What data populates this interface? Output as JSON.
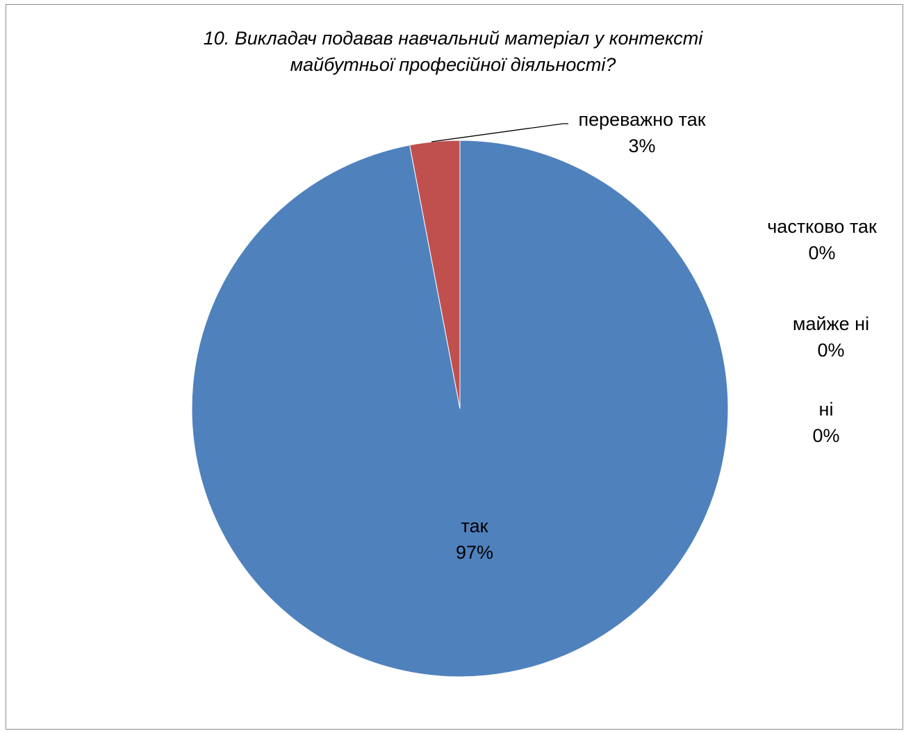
{
  "chart_data": {
    "type": "pie",
    "title_lines": [
      "10. Викладач подавав навчальний матеріал  у контексті",
      "майбутньої професійної діяльності?"
    ],
    "slices": [
      {
        "label": "так",
        "value": 97,
        "display": "97%",
        "color": "#4F81BD"
      },
      {
        "label": "переважно так",
        "value": 3,
        "display": "3%",
        "color": "#C0504D"
      },
      {
        "label": "частково так",
        "value": 0,
        "display": "0%",
        "color": "#9BBB59"
      },
      {
        "label": "майже ні",
        "value": 0,
        "display": "0%",
        "color": "#8064A2"
      },
      {
        "label": "ні",
        "value": 0,
        "display": "0%",
        "color": "#4BACC6"
      }
    ],
    "start_angle_deg": 0,
    "direction": "clockwise",
    "legend": "none",
    "data_labels": "category name and percentage"
  }
}
